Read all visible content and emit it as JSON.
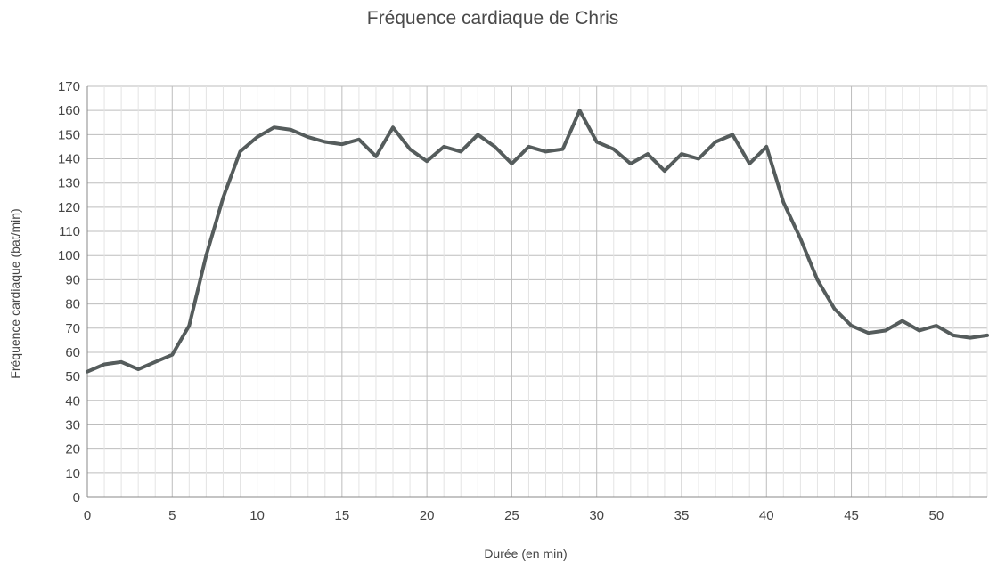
{
  "chart_data": {
    "type": "line",
    "title": "Fréquence cardiaque de Chris",
    "xlabel": "Durée (en min)",
    "ylabel": "Fréquence cardiaque (bat/min)",
    "xlim": [
      0,
      53
    ],
    "ylim": [
      0,
      170
    ],
    "x_ticks": [
      0,
      5,
      10,
      15,
      20,
      25,
      30,
      35,
      40,
      45,
      50
    ],
    "y_ticks": [
      0,
      10,
      20,
      30,
      40,
      50,
      60,
      70,
      80,
      90,
      100,
      110,
      120,
      130,
      140,
      150,
      160,
      170
    ],
    "x_minor_step": 1,
    "grid": true,
    "legend": "none",
    "line_color": "#555c5c",
    "series": [
      {
        "x": [
          0,
          1,
          2,
          3,
          4,
          5,
          6,
          7,
          8,
          9,
          10,
          11,
          12,
          13,
          14,
          15,
          16,
          17,
          18,
          19,
          20,
          21,
          22,
          23,
          24,
          25,
          26,
          27,
          28,
          29,
          30,
          31,
          32,
          33,
          34,
          35,
          36,
          37,
          38,
          39,
          40,
          41,
          42,
          43,
          44,
          45,
          46,
          47,
          48,
          49,
          50,
          51,
          52,
          53
        ],
        "y": [
          52,
          55,
          56,
          53,
          56,
          59,
          71,
          100,
          124,
          143,
          149,
          153,
          152,
          149,
          147,
          146,
          148,
          141,
          153,
          144,
          139,
          145,
          143,
          150,
          145,
          138,
          145,
          143,
          144,
          160,
          147,
          144,
          138,
          142,
          135,
          142,
          140,
          147,
          150,
          138,
          145,
          122,
          107,
          90,
          78,
          71,
          68,
          69,
          73,
          69,
          71,
          67,
          66,
          67
        ]
      }
    ]
  }
}
